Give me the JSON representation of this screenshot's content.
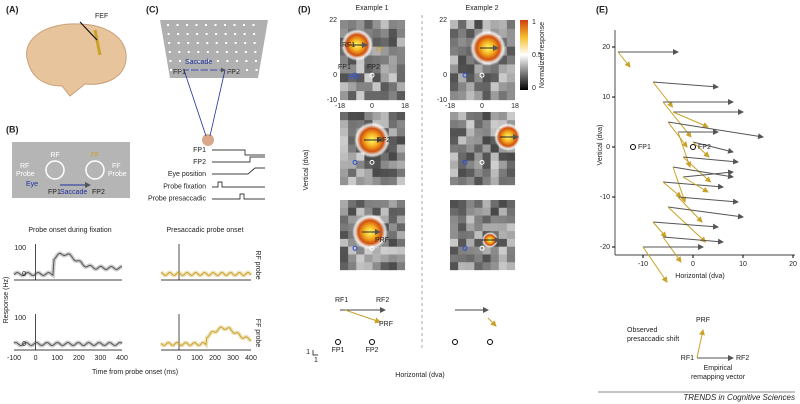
{
  "A": {
    "label": "(A)",
    "fef": "FEF"
  },
  "B": {
    "label": "(B)",
    "diagram": {
      "rf": "RF",
      "ff": "FF",
      "rf_probe": [
        "RF",
        "Probe"
      ],
      "ff_probe": [
        "FF",
        "Probe"
      ],
      "eye": "Eye",
      "saccade": "Saccade",
      "fp1": "FP1",
      "fp2": "FP2"
    },
    "timeline": [
      "FP1",
      "FP2",
      "Eye position",
      "Probe fixation",
      "Probe presaccadic"
    ],
    "plot_titles": [
      "Probe onset during fixation",
      "Presaccadic probe onset"
    ],
    "row_labels": [
      "RF probe",
      "FF probe"
    ],
    "y_label": "Response (Hz)",
    "y_ticks": [
      100,
      0
    ],
    "x_ticks_left": [
      -100,
      0,
      100,
      200,
      300,
      400
    ],
    "x_ticks_right": [
      0,
      100,
      200,
      300,
      400
    ],
    "x_label": "Time from probe onset (ms)"
  },
  "C": {
    "label": "(C)",
    "saccade": "Saccade",
    "fp1": "FP1",
    "fp2": "FP2"
  },
  "D": {
    "label": "(D)",
    "examples": [
      "Example 1",
      "Example 2"
    ],
    "colorbar_title": "Normalized response",
    "colorbar_ticks": [
      1,
      0.5,
      0
    ],
    "y_ticks": [
      22,
      0,
      -10
    ],
    "x_ticks": [
      -18,
      0,
      18
    ],
    "annotations": {
      "rf1": "RF1",
      "ff": "FF",
      "fp1": "FP1",
      "fp2": "FP2",
      "eye": "Eye",
      "rf2": "RF2",
      "prf": "PRF"
    },
    "y_label": "Vertical (dva)",
    "x_label": "Horizontal (dva)",
    "schematic": {
      "rf1": "RF1",
      "rf2": "RF2",
      "prf": "PRF",
      "fp1": "FP1",
      "fp2": "FP2",
      "scale": [
        "1",
        "1"
      ]
    }
  },
  "E": {
    "label": "(E)",
    "y_ticks": [
      20,
      10,
      0,
      -10,
      -20
    ],
    "x_ticks": [
      -10,
      0,
      10,
      20
    ],
    "fp1": "FP1",
    "fp2": "FP2",
    "y_label": "Vertical (dva)",
    "x_label": "Horizontal (dva)",
    "legend": {
      "observed": [
        "Observed",
        "presaccadic shift"
      ],
      "prf": "PRF",
      "rf1": "RF1",
      "rf2": "RF2",
      "empirical": [
        "Empirical",
        "remapping vector"
      ]
    }
  },
  "footer": "TRENDS in Cognitive Sciences"
}
